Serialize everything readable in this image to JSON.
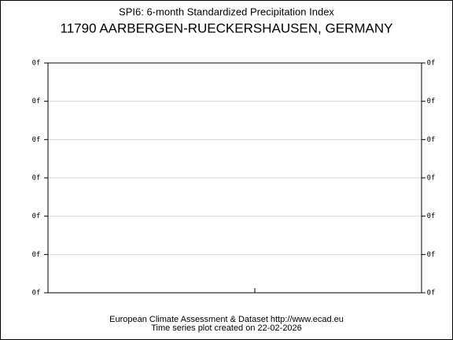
{
  "chart_data": {
    "type": "line",
    "title": "SPI6: 6-month Standardized Precipitation Index",
    "subtitle": "11790 AARBERGEN-RUECKERSHAUSEN, GERMANY",
    "ylim": [
      -3,
      3
    ],
    "yticks": [
      {
        "value": 3,
        "label": "0f"
      },
      {
        "value": 2,
        "label": "0f"
      },
      {
        "value": 1,
        "label": "0f"
      },
      {
        "value": 0,
        "label": "0f"
      },
      {
        "value": -1,
        "label": "0f"
      },
      {
        "value": -2,
        "label": "0f"
      },
      {
        "value": -3,
        "label": "0f"
      }
    ],
    "grid": true,
    "footer": [
      "European Climate Assessment & Dataset  http://www.ecad.eu",
      "Time series plot created on 22-02-2026"
    ]
  }
}
